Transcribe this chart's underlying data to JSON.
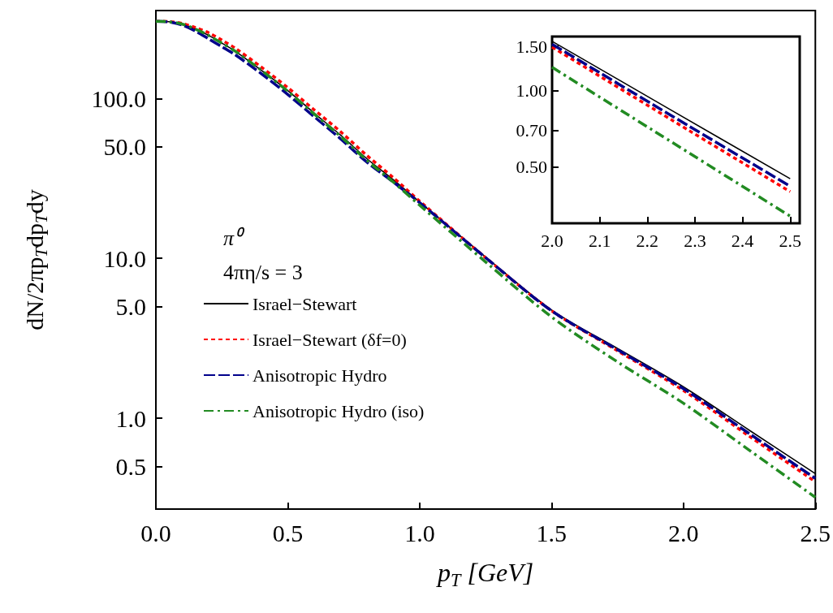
{
  "chart_data": [
    {
      "type": "line",
      "xlabel": "p$_{T}$ [GeV]",
      "ylabel": "dN/2πp$_{T}$dp$_{T}$dy",
      "annotations": [
        "π⁰",
        "4πη/s = 3"
      ],
      "log": "y",
      "grid": false,
      "legend": "bottom left",
      "marker": "none",
      "x": [
        0,
        0.05,
        0.1,
        0.15,
        0.2,
        0.25,
        0.3,
        0.4,
        0.5,
        0.6,
        0.7,
        0.8,
        0.9,
        1.0,
        1.25,
        1.5,
        1.75,
        2.0,
        2.25,
        2.5
      ],
      "xlim": [
        0,
        2.5
      ],
      "xticks": [
        {
          "value": 0,
          "label": "0.0"
        },
        0.5,
        {
          "value": 1,
          "label": "1.0"
        },
        1.5,
        {
          "value": 2,
          "label": "2.0"
        },
        2.5
      ],
      "ylim": [
        0.27,
        355
      ],
      "yticks": [
        0.5,
        {
          "value": 1,
          "label": "1.0"
        },
        {
          "value": 5,
          "label": "5.0"
        },
        {
          "value": 10,
          "label": "10.0"
        },
        {
          "value": 50,
          "label": "50.0"
        },
        {
          "value": 100,
          "label": "100.0"
        }
      ],
      "series": [
        {
          "name": "Israel−Stewart",
          "color": "#000000",
          "line_style": "solid",
          "values": [
            304,
            302,
            292,
            272,
            248,
            222,
            198,
            150,
            112,
            81,
            59,
            42,
            31,
            22.5,
            10.2,
            4.75,
            2.73,
            1.57,
            0.84,
            0.45
          ]
        },
        {
          "name": "Israel−Stewart (δf=0)",
          "color": "#ff0000",
          "line_style": "dotted",
          "values": [
            304,
            303,
            295,
            278,
            258,
            232,
            207,
            157,
            117,
            85,
            62,
            44,
            32,
            22.8,
            10.1,
            4.7,
            2.64,
            1.49,
            0.77,
            0.4
          ]
        },
        {
          "name": "Anisotropic Hydro",
          "color": "#00008b",
          "line_style": "dashed",
          "values": [
            304,
            301,
            288,
            264,
            236,
            211,
            188,
            143,
            106,
            77,
            56,
            40,
            30,
            22.3,
            10.1,
            4.7,
            2.68,
            1.53,
            0.8,
            0.42
          ]
        },
        {
          "name": "Anisotropic Hydro (iso)",
          "color": "#228b22",
          "line_style": "dashdot",
          "values": [
            304,
            302,
            292,
            272,
            248,
            222,
            198,
            150,
            111,
            80,
            58,
            41,
            30,
            21.5,
            9.5,
            4.3,
            2.25,
            1.24,
            0.63,
            0.32
          ]
        }
      ]
    },
    {
      "type": "line",
      "log": "y",
      "grid": false,
      "marker": "none",
      "x": [
        2.0,
        2.25,
        2.5
      ],
      "xlim": [
        2.0,
        2.52
      ],
      "xticks": [
        {
          "value": 2,
          "label": "2.0"
        },
        2.1,
        2.2,
        2.3,
        2.4,
        2.5
      ],
      "ylim": [
        0.3,
        1.64
      ],
      "yticks": [
        {
          "value": 0.5,
          "label": "0.50"
        },
        {
          "value": 0.7,
          "label": "0.70"
        },
        {
          "value": 1,
          "label": "1.00"
        },
        {
          "value": 1.5,
          "label": "1.50"
        }
      ],
      "series": [
        {
          "color": "#000000",
          "line_style": "solid",
          "values": [
            1.57,
            0.84,
            0.45
          ]
        },
        {
          "color": "#ff0000",
          "line_style": "dotted",
          "values": [
            1.49,
            0.77,
            0.4
          ]
        },
        {
          "color": "#00008b",
          "line_style": "dashed",
          "values": [
            1.53,
            0.8,
            0.42
          ]
        },
        {
          "color": "#228b22",
          "line_style": "dashdot",
          "values": [
            1.24,
            0.63,
            0.32
          ]
        }
      ]
    }
  ]
}
